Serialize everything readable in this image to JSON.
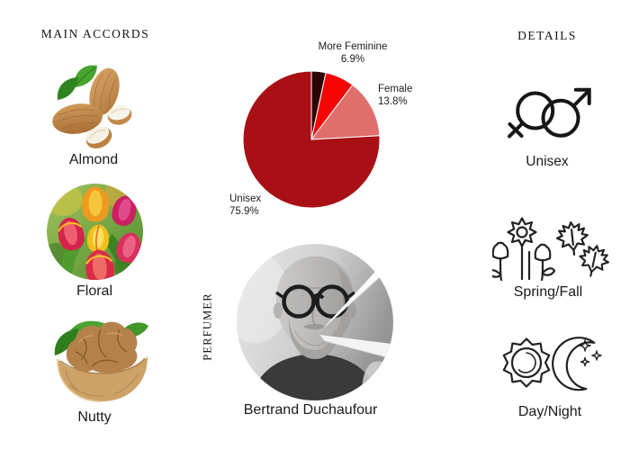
{
  "accords": {
    "title": "MAIN ACCORDS",
    "items": [
      {
        "label": "Almond",
        "image": "almonds-photo"
      },
      {
        "label": "Floral",
        "image": "tulips-photo"
      },
      {
        "label": "Nutty",
        "image": "walnut-photo"
      }
    ]
  },
  "chart_data": {
    "type": "pie",
    "unit": "%",
    "slices": [
      {
        "label": "",
        "value": 3.4,
        "pct_label": "",
        "color": "#2e0506"
      },
      {
        "label": "More Feminine",
        "value": 6.9,
        "pct_label": "6.9%",
        "color": "#f70505"
      },
      {
        "label": "Female",
        "value": 13.8,
        "pct_label": "13.8%",
        "color": "#e06e6d"
      },
      {
        "label": "Unisex",
        "value": 75.9,
        "pct_label": "75.9%",
        "color": "#a91015"
      }
    ],
    "start_angle_deg": 0,
    "direction": "clockwise",
    "stroke": "#ffffff",
    "legend": "outside-labels"
  },
  "perfumer": {
    "section_label": "PERFUMER",
    "name": "Bertrand Duchaufour",
    "photo": "black-and-white-portrait-with-scent-strips"
  },
  "details": {
    "title": "DETAILS",
    "items": [
      {
        "label": "Unisex",
        "icon": "gender-unisex-icon"
      },
      {
        "label": "Spring/Fall",
        "icon": "flower-maple-leaves-icon"
      },
      {
        "label": "Day/Night",
        "icon": "sun-moon-icon"
      }
    ]
  },
  "colors": {
    "background": "#ffffff",
    "text": "#1c1c1c"
  }
}
